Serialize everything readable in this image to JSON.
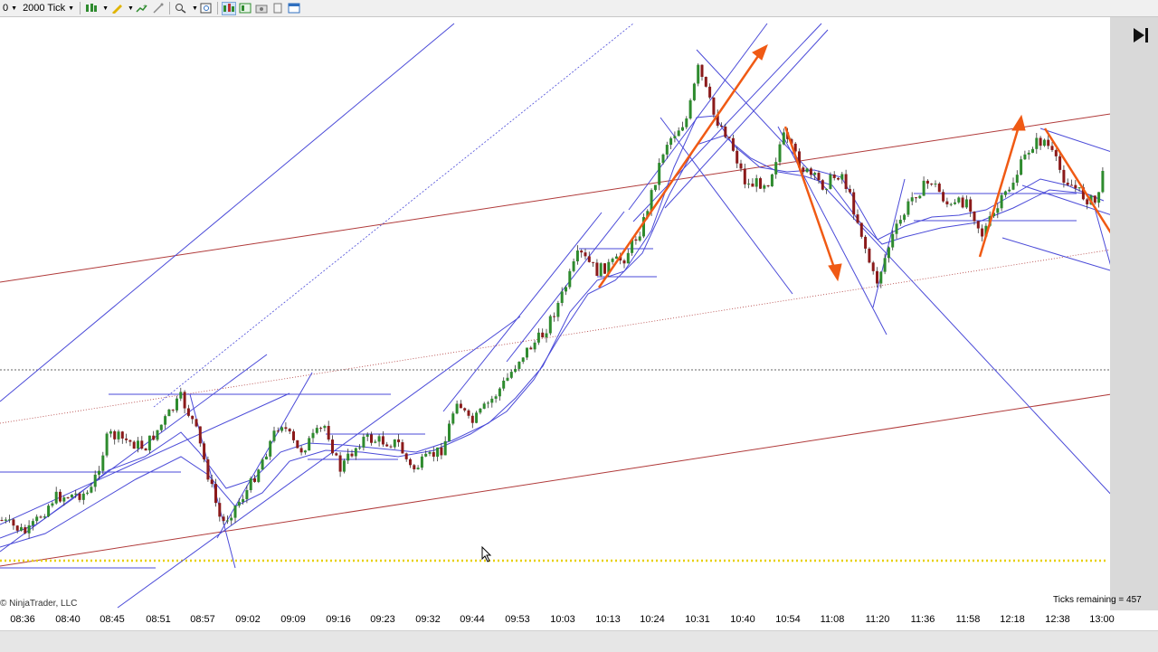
{
  "toolbar": {
    "interval_label": "2000 Tick",
    "instrument_dropdown_label": "0"
  },
  "chart": {
    "copyright": "© NinjaTrader, LLC",
    "ticks_remaining": "Ticks remaining = 457",
    "time_labels": [
      "08:36",
      "08:40",
      "08:45",
      "08:51",
      "08:57",
      "09:02",
      "09:09",
      "09:16",
      "09:23",
      "09:32",
      "09:44",
      "09:53",
      "10:03",
      "10:13",
      "10:24",
      "10:31",
      "10:40",
      "10:54",
      "11:08",
      "11:20",
      "11:36",
      "11:58",
      "12:18",
      "12:38",
      "13:00"
    ],
    "colors": {
      "trendline_blue": "#4040d8",
      "channel_red": "#b03a3a",
      "arrow_orange": "#f05a14",
      "bull_candle": "#2e8b2e",
      "bear_candle": "#8b1a1a",
      "horizontal_yellow": "#e8d000"
    }
  }
}
